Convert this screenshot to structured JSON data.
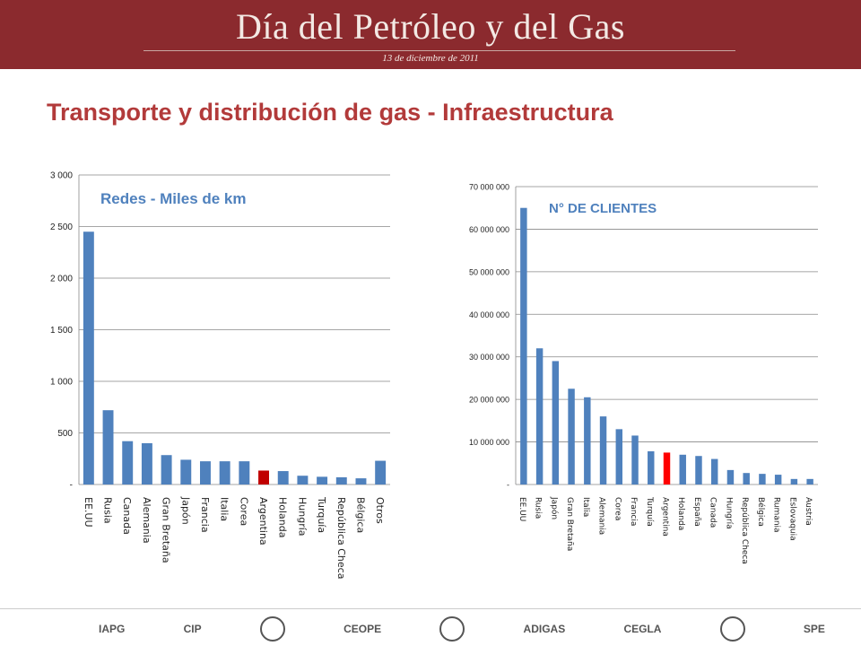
{
  "banner": {
    "title": "Día del Petróleo y del Gas",
    "date": "13 de diciembre de 2011"
  },
  "page_title": "Transporte y distribución de gas - Infraestructura",
  "chart_data": [
    {
      "type": "bar",
      "title": "Redes - Miles de km",
      "categories": [
        "EE.UU",
        "Rusia",
        "Canada",
        "Alemania",
        "Gran Bretaña",
        "Japón",
        "Francia",
        "Italia",
        "Corea",
        "Argentina",
        "Holanda",
        "Hungría",
        "Turquía",
        "República Checa",
        "Bélgica",
        "Otros"
      ],
      "values": [
        2450,
        720,
        420,
        400,
        285,
        240,
        225,
        225,
        225,
        135,
        130,
        85,
        75,
        70,
        60,
        230
      ],
      "ylim": [
        0,
        3000
      ],
      "yticks": [
        0,
        500,
        1000,
        1500,
        2000,
        2500,
        3000
      ],
      "ytick_labels": [
        "-",
        "500",
        "1 000",
        "1 500",
        "2 000",
        "2 500",
        "3 000"
      ],
      "highlight": "Argentina",
      "colors": {
        "bar": "#4f81bd",
        "highlight": "#c00000",
        "title": "#4f81bd"
      },
      "grid": true
    },
    {
      "type": "bar",
      "title": "N° DE CLIENTES",
      "categories": [
        "EE.UU",
        "Rusia",
        "Japón",
        "Gran Bretaña",
        "Italia",
        "Alemania",
        "Corea",
        "Francia",
        "Turquía",
        "Argentina",
        "Holanda",
        "España",
        "Canada",
        "Hungría",
        "República Checa",
        "Bélgica",
        "Rumania",
        "Eslovaquia",
        "Austria"
      ],
      "values": [
        65000000,
        32000000,
        29000000,
        22500000,
        20500000,
        16000000,
        13000000,
        11500000,
        7800000,
        7500000,
        7000000,
        6700000,
        6000000,
        3400000,
        2700000,
        2500000,
        2300000,
        1300000,
        1300000
      ],
      "ylim": [
        0,
        70000000
      ],
      "yticks": [
        0,
        10000000,
        20000000,
        30000000,
        40000000,
        50000000,
        60000000,
        70000000
      ],
      "ytick_labels": [
        "-",
        "10 000 000",
        "20 000 000",
        "30 000 000",
        "40 000 000",
        "50 000 000",
        "60 000 000",
        "70 000 000"
      ],
      "highlight": "Argentina",
      "colors": {
        "bar": "#4f81bd",
        "highlight": "#ff0000",
        "title": "#4f81bd"
      },
      "grid": true
    }
  ],
  "footer_logos": [
    {
      "icon": "iapg-logo",
      "text": "IAPG"
    },
    {
      "icon": "cip-logo",
      "text": "CIP"
    },
    {
      "icon": "building-logo",
      "text": ""
    },
    {
      "icon": "ceope-logo",
      "text": "CEOPE"
    },
    {
      "icon": "seal-logo",
      "text": ""
    },
    {
      "icon": "adigas-logo",
      "text": "ADIGAS"
    },
    {
      "icon": "cegla-logo",
      "text": "CEGLA"
    },
    {
      "icon": "round-seal-logo",
      "text": ""
    },
    {
      "icon": "spe-logo",
      "text": "SPE"
    }
  ]
}
